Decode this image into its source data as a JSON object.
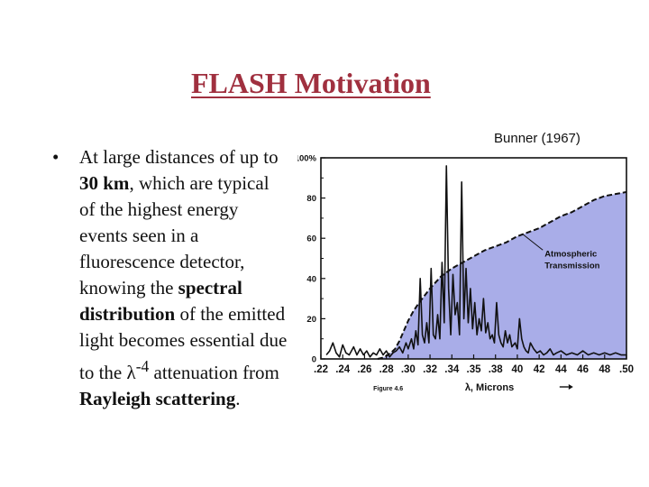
{
  "slide": {
    "title": "FLASH Motivation",
    "citation": "Bunner (1967)",
    "bullet": {
      "marker": "•",
      "t1": "At large distances of up to ",
      "b1": "30 km",
      "t2": ", which are typical of the highest energy events seen in a fluorescence detector, knowing the ",
      "b2": "spectral distribution",
      "t3": " of the emitted light becomes essential due to the ",
      "lambda": "λ",
      "exp": "-4",
      "t4": " attenuation from ",
      "b3": "Rayleigh scattering",
      "t5": "."
    }
  },
  "chart_data": {
    "type": "line",
    "xlabel": "λ, Microns",
    "figure_label": "Figure 4.6",
    "x_tick_labels": [
      ".22",
      ".24",
      ".26",
      ".28",
      ".30",
      ".32",
      ".34",
      ".35",
      ".38",
      "40",
      "42",
      "44",
      "46",
      "48",
      ".50"
    ],
    "y_tick_labels": [
      "0",
      "20",
      "40",
      "60",
      "80",
      "100%"
    ],
    "xlim": [
      0.22,
      0.5
    ],
    "ylim": [
      0,
      100
    ],
    "annotation": "Atmospheric Transmission",
    "colors": {
      "fill": "#a9ade8",
      "line": "#111111",
      "frame": "#111111"
    },
    "series": [
      {
        "name": "Atmospheric Transmission",
        "style": "dashed",
        "x": [
          0.272,
          0.276,
          0.28,
          0.284,
          0.288,
          0.292,
          0.296,
          0.3,
          0.305,
          0.31,
          0.32,
          0.33,
          0.34,
          0.35,
          0.36,
          0.37,
          0.38,
          0.39,
          0.4,
          0.41,
          0.42,
          0.43,
          0.44,
          0.45,
          0.46,
          0.47,
          0.48,
          0.49,
          0.5
        ],
        "y": [
          0,
          0.5,
          1.5,
          3,
          5,
          9,
          14,
          19,
          24,
          28,
          35,
          41,
          45,
          48,
          51,
          54,
          56,
          58,
          61,
          63,
          65,
          68,
          71,
          73,
          76,
          79,
          81,
          82,
          83
        ]
      },
      {
        "name": "",
        "style": "solid",
        "x": [
          0.225,
          0.228,
          0.231,
          0.234,
          0.237,
          0.24,
          0.243,
          0.246,
          0.25,
          0.253,
          0.256,
          0.259,
          0.262,
          0.265,
          0.268,
          0.271,
          0.274,
          0.277,
          0.28,
          0.283,
          0.286,
          0.289,
          0.292,
          0.295,
          0.298,
          0.3,
          0.303,
          0.305,
          0.307,
          0.309,
          0.311,
          0.313,
          0.315,
          0.317,
          0.319,
          0.321,
          0.323,
          0.325,
          0.327,
          0.329,
          0.331,
          0.333,
          0.335,
          0.337,
          0.339,
          0.341,
          0.343,
          0.345,
          0.347,
          0.349,
          0.351,
          0.353,
          0.355,
          0.357,
          0.359,
          0.361,
          0.363,
          0.365,
          0.367,
          0.369,
          0.371,
          0.373,
          0.375,
          0.377,
          0.379,
          0.381,
          0.383,
          0.385,
          0.387,
          0.389,
          0.391,
          0.393,
          0.395,
          0.398,
          0.4,
          0.402,
          0.404,
          0.406,
          0.408,
          0.41,
          0.412,
          0.415,
          0.418,
          0.421,
          0.424,
          0.427,
          0.43,
          0.433,
          0.436,
          0.44,
          0.445,
          0.45,
          0.455,
          0.46,
          0.465,
          0.47,
          0.475,
          0.48,
          0.485,
          0.49,
          0.495,
          0.5
        ],
        "y": [
          2,
          4,
          8,
          3,
          1,
          7,
          3,
          2,
          6,
          2,
          5,
          2,
          4,
          1,
          3,
          2,
          5,
          2,
          4,
          1,
          3,
          4,
          6,
          3,
          8,
          5,
          10,
          5,
          14,
          7,
          40,
          12,
          8,
          18,
          8,
          45,
          12,
          10,
          22,
          10,
          48,
          18,
          96,
          35,
          12,
          42,
          22,
          28,
          12,
          88,
          20,
          45,
          18,
          35,
          15,
          28,
          12,
          20,
          14,
          30,
          13,
          18,
          10,
          12,
          8,
          28,
          12,
          8,
          6,
          14,
          8,
          12,
          6,
          8,
          5,
          20,
          10,
          6,
          4,
          3,
          8,
          5,
          3,
          4,
          2,
          3,
          5,
          2,
          3,
          4,
          2,
          3,
          2,
          4,
          2,
          3,
          2,
          3,
          2,
          3,
          2,
          2
        ]
      }
    ]
  }
}
